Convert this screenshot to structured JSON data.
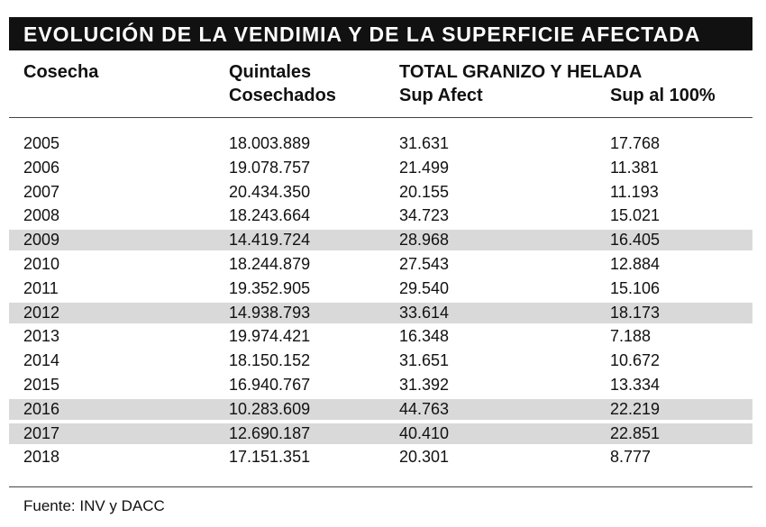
{
  "title": "EVOLUCIÓN DE LA VENDIMIA Y DE LA SUPERFICIE AFECTADA",
  "headers": {
    "cosecha": "Cosecha",
    "quintales_1": "Quintales",
    "quintales_2": "Cosechados",
    "group": "TOTAL GRANIZO Y HELADA",
    "sup_afect": "Sup Afect",
    "sup_100": "Sup al 100%"
  },
  "source": "Fuente: INV y DACC",
  "chart_data": {
    "type": "table",
    "title": "EVOLUCIÓN DE LA VENDIMIA Y DE LA SUPERFICIE AFECTADA",
    "columns": [
      "Cosecha",
      "Quintales Cosechados",
      "Sup Afect",
      "Sup al 100%"
    ],
    "rows": [
      {
        "year": "2005",
        "quintales": "18.003.889",
        "sup_afect": "31.631",
        "sup_100": "17.768",
        "highlighted": false
      },
      {
        "year": "2006",
        "quintales": "19.078.757",
        "sup_afect": "21.499",
        "sup_100": "11.381",
        "highlighted": false
      },
      {
        "year": "2007",
        "quintales": "20.434.350",
        "sup_afect": "20.155",
        "sup_100": "11.193",
        "highlighted": false
      },
      {
        "year": "2008",
        "quintales": "18.243.664",
        "sup_afect": "34.723",
        "sup_100": "15.021",
        "highlighted": false
      },
      {
        "year": "2009",
        "quintales": "14.419.724",
        "sup_afect": "28.968",
        "sup_100": "16.405",
        "highlighted": true
      },
      {
        "year": "2010",
        "quintales": "18.244.879",
        "sup_afect": "27.543",
        "sup_100": "12.884",
        "highlighted": false
      },
      {
        "year": "2011",
        "quintales": "19.352.905",
        "sup_afect": "29.540",
        "sup_100": "15.106",
        "highlighted": false
      },
      {
        "year": "2012",
        "quintales": "14.938.793",
        "sup_afect": "33.614",
        "sup_100": "18.173",
        "highlighted": true
      },
      {
        "year": "2013",
        "quintales": "19.974.421",
        "sup_afect": "16.348",
        "sup_100": "7.188",
        "highlighted": false
      },
      {
        "year": "2014",
        "quintales": "18.150.152",
        "sup_afect": "31.651",
        "sup_100": "10.672",
        "highlighted": false
      },
      {
        "year": "2015",
        "quintales": "16.940.767",
        "sup_afect": "31.392",
        "sup_100": "13.334",
        "highlighted": false
      },
      {
        "year": "2016",
        "quintales": "10.283.609",
        "sup_afect": "44.763",
        "sup_100": "22.219",
        "highlighted": true
      },
      {
        "year": "2017",
        "quintales": "12.690.187",
        "sup_afect": "40.410",
        "sup_100": "22.851",
        "highlighted": true
      },
      {
        "year": "2018",
        "quintales": "17.151.351",
        "sup_afect": "20.301",
        "sup_100": "8.777",
        "highlighted": false
      }
    ]
  }
}
